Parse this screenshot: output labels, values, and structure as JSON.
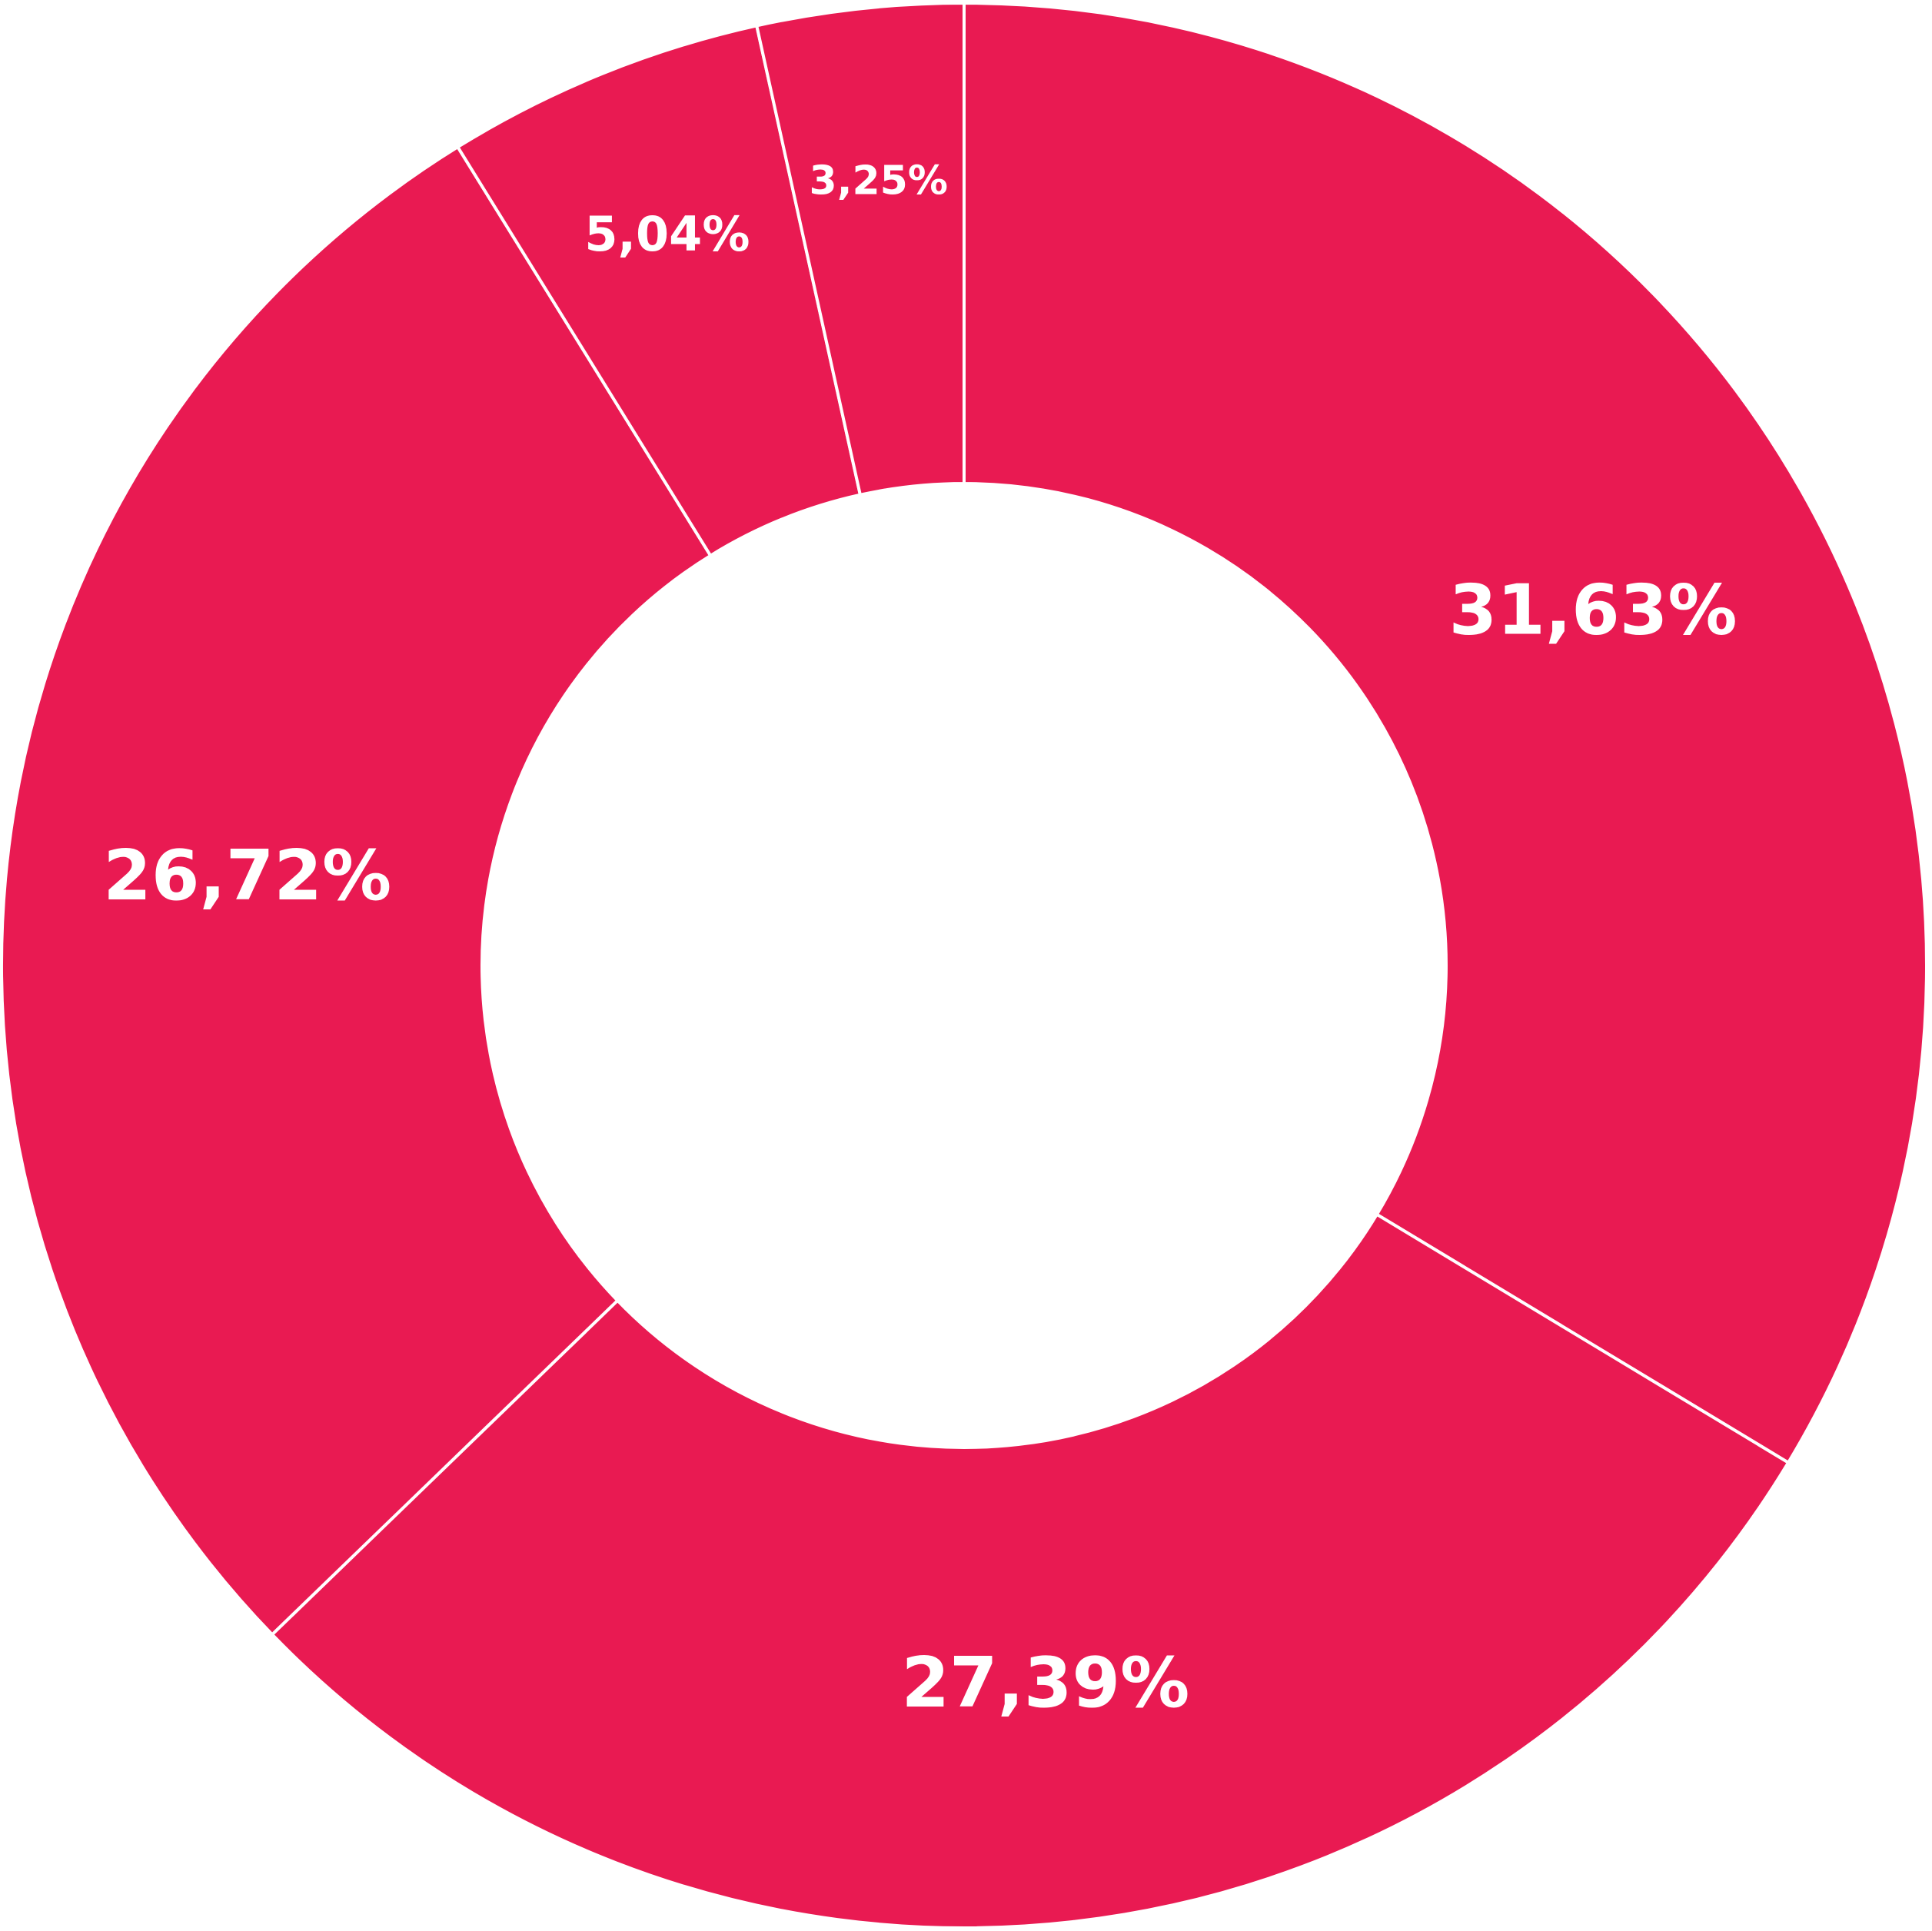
{
  "chart_data": {
    "type": "pie",
    "variant": "donut",
    "title": "",
    "color": "#E91A52",
    "separator_color": "#FFFFFF",
    "legend": "none",
    "slices": [
      {
        "label": "31,63%",
        "value": 31.63
      },
      {
        "label": "27,39%",
        "value": 27.39
      },
      {
        "label": "26,72%",
        "value": 26.72
      },
      {
        "label": "5,04%",
        "value": 5.04
      },
      {
        "label": "3,25%",
        "value": 3.25
      }
    ]
  }
}
